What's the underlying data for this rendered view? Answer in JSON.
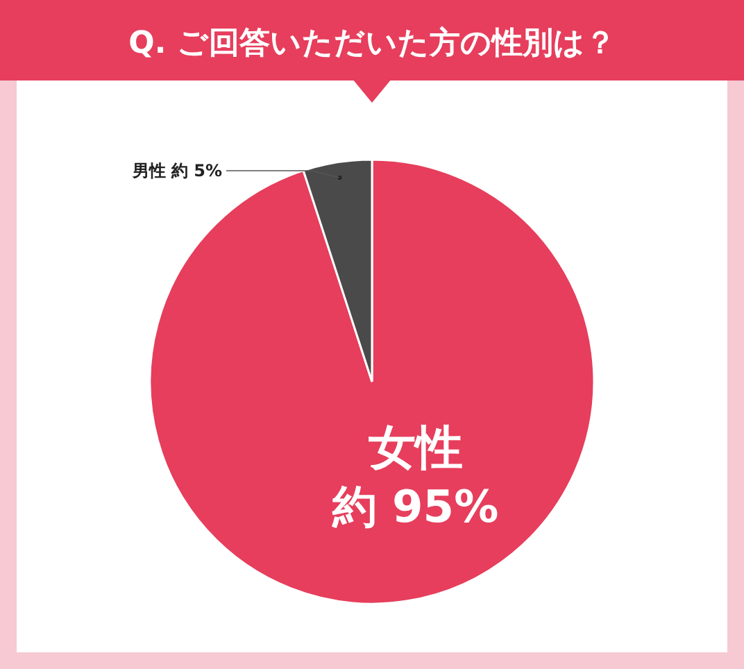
{
  "chart_data": {
    "type": "pie",
    "title": "Q. ご回答いただいた方の性別は？",
    "categories": [
      "女性",
      "男性"
    ],
    "values": [
      95,
      5
    ],
    "colors": [
      "#e63e5c",
      "#4a4a4a"
    ],
    "value_labels": [
      "約 95%",
      "約 5%"
    ]
  }
}
